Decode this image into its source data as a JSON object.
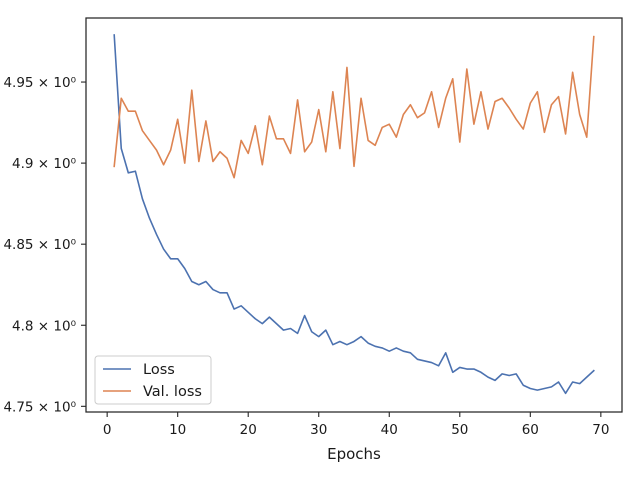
{
  "chart_data": {
    "type": "line",
    "xlabel": "Epochs",
    "ylabel": "",
    "title": "",
    "xlim": [
      -3,
      73
    ],
    "ylim": [
      4.7465,
      4.9895
    ],
    "x_ticks": [
      0,
      10,
      20,
      30,
      40,
      50,
      60,
      70
    ],
    "y_ticks": [
      4.75,
      4.8,
      4.85,
      4.9,
      4.95
    ],
    "y_tick_labels": [
      "4.75 × 10⁰",
      "4.8 × 10⁰",
      "4.85 × 10⁰",
      "4.9 × 10⁰",
      "4.95 × 10⁰"
    ],
    "grid": false,
    "legend_position": "lower-left",
    "x": [
      1,
      2,
      3,
      4,
      5,
      6,
      7,
      8,
      9,
      10,
      11,
      12,
      13,
      14,
      15,
      16,
      17,
      18,
      19,
      20,
      21,
      22,
      23,
      24,
      25,
      26,
      27,
      28,
      29,
      30,
      31,
      32,
      33,
      34,
      35,
      36,
      37,
      38,
      39,
      40,
      41,
      42,
      43,
      44,
      45,
      46,
      47,
      48,
      49,
      50,
      51,
      52,
      53,
      54,
      55,
      56,
      57,
      58,
      59,
      60,
      61,
      62,
      63,
      64,
      65,
      66,
      67,
      68,
      69
    ],
    "series": [
      {
        "name": "Loss",
        "color": "#4c72b0",
        "values": [
          4.979,
          4.909,
          4.894,
          4.895,
          4.878,
          4.866,
          4.856,
          4.847,
          4.841,
          4.841,
          4.835,
          4.827,
          4.825,
          4.827,
          4.822,
          4.82,
          4.82,
          4.81,
          4.812,
          4.808,
          4.804,
          4.801,
          4.805,
          4.801,
          4.797,
          4.798,
          4.795,
          4.806,
          4.796,
          4.793,
          4.797,
          4.788,
          4.79,
          4.788,
          4.79,
          4.793,
          4.789,
          4.787,
          4.786,
          4.784,
          4.786,
          4.784,
          4.783,
          4.779,
          4.778,
          4.777,
          4.775,
          4.783,
          4.771,
          4.774,
          4.773,
          4.773,
          4.771,
          4.768,
          4.766,
          4.77,
          4.769,
          4.77,
          4.763,
          4.761,
          4.76,
          4.761,
          4.762,
          4.765,
          4.758,
          4.765,
          4.764,
          4.768,
          4.772
        ]
      },
      {
        "name": "Val. loss",
        "color": "#dd8452",
        "values": [
          4.898,
          4.94,
          4.932,
          4.932,
          4.92,
          4.914,
          4.908,
          4.899,
          4.908,
          4.927,
          4.9,
          4.945,
          4.901,
          4.926,
          4.901,
          4.907,
          4.903,
          4.891,
          4.914,
          4.906,
          4.923,
          4.899,
          4.929,
          4.915,
          4.915,
          4.906,
          4.939,
          4.907,
          4.913,
          4.933,
          4.907,
          4.944,
          4.909,
          4.959,
          4.898,
          4.94,
          4.914,
          4.911,
          4.922,
          4.924,
          4.916,
          4.93,
          4.936,
          4.928,
          4.931,
          4.944,
          4.922,
          4.94,
          4.952,
          4.913,
          4.958,
          4.924,
          4.944,
          4.921,
          4.938,
          4.94,
          4.934,
          4.927,
          4.921,
          4.937,
          4.944,
          4.919,
          4.936,
          4.941,
          4.918,
          4.956,
          4.93,
          4.916,
          4.978
        ]
      }
    ]
  }
}
